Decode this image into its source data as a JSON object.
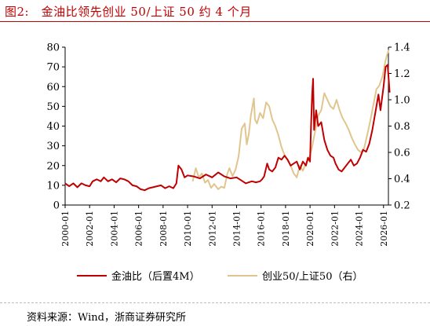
{
  "page": {
    "title": "图2:　金油比领先创业 50/上证 50 约 4 个月",
    "source": "资料来源：Wind，浙商证券研究所"
  },
  "chart_data": {
    "type": "line",
    "title": "图2:　金油比领先创业 50/上证 50 约 4 个月",
    "x_ticks": [
      "2000-01",
      "2002-01",
      "2004-01",
      "2006-01",
      "2008-01",
      "2010-01",
      "2012-01",
      "2014-01",
      "2016-01",
      "2018-01",
      "2020-01",
      "2022-01",
      "2024-01",
      "2026-01"
    ],
    "y_left": {
      "ticks": [
        0,
        10,
        20,
        30,
        40,
        50,
        60,
        70,
        80
      ],
      "ylim": [
        0,
        80
      ]
    },
    "y_right": {
      "ticks": [
        "0.2",
        "0.4",
        "0.6",
        "0.8",
        "1.0",
        "1.2",
        "1.4"
      ],
      "ylim": [
        0.2,
        1.4
      ]
    },
    "grid": false,
    "legend_position": "bottom",
    "series": [
      {
        "name": "金油比（后置4M）",
        "axis": "left",
        "color": "#c00000",
        "points": [
          [
            "2000-01",
            11
          ],
          [
            "2000-05",
            9.5
          ],
          [
            "2000-09",
            11
          ],
          [
            "2001-01",
            9
          ],
          [
            "2001-05",
            11
          ],
          [
            "2001-09",
            10
          ],
          [
            "2002-01",
            9.5
          ],
          [
            "2002-04",
            12
          ],
          [
            "2002-08",
            13
          ],
          [
            "2002-12",
            12
          ],
          [
            "2003-03",
            14
          ],
          [
            "2003-07",
            12
          ],
          [
            "2003-11",
            13
          ],
          [
            "2004-03",
            11.5
          ],
          [
            "2004-07",
            13.5
          ],
          [
            "2004-11",
            13
          ],
          [
            "2005-03",
            12
          ],
          [
            "2005-07",
            10
          ],
          [
            "2005-11",
            9.5
          ],
          [
            "2006-03",
            8
          ],
          [
            "2006-07",
            7.5
          ],
          [
            "2006-11",
            8.5
          ],
          [
            "2007-03",
            9
          ],
          [
            "2007-07",
            9.5
          ],
          [
            "2007-11",
            10
          ],
          [
            "2008-03",
            8.5
          ],
          [
            "2008-07",
            9.5
          ],
          [
            "2008-11",
            8.5
          ],
          [
            "2009-02",
            11
          ],
          [
            "2009-04",
            20
          ],
          [
            "2009-07",
            18
          ],
          [
            "2009-10",
            14
          ],
          [
            "2010-01",
            15
          ],
          [
            "2010-07",
            14.5
          ],
          [
            "2011-01",
            13.5
          ],
          [
            "2011-07",
            15.5
          ],
          [
            "2012-01",
            14
          ],
          [
            "2012-07",
            16.5
          ],
          [
            "2013-01",
            14.5
          ],
          [
            "2013-07",
            13.5
          ],
          [
            "2014-01",
            14
          ],
          [
            "2014-07",
            12
          ],
          [
            "2014-10",
            11
          ],
          [
            "2015-01",
            11.5
          ],
          [
            "2015-04",
            12
          ],
          [
            "2015-08",
            11.5
          ],
          [
            "2015-12",
            12
          ],
          [
            "2016-02",
            13
          ],
          [
            "2016-04",
            14.5
          ],
          [
            "2016-07",
            21
          ],
          [
            "2016-09",
            18
          ],
          [
            "2016-12",
            17
          ],
          [
            "2017-03",
            19
          ],
          [
            "2017-06",
            24
          ],
          [
            "2017-09",
            23
          ],
          [
            "2017-12",
            25
          ],
          [
            "2018-03",
            23
          ],
          [
            "2018-06",
            20
          ],
          [
            "2018-09",
            21
          ],
          [
            "2018-12",
            22
          ],
          [
            "2019-03",
            18
          ],
          [
            "2019-06",
            22
          ],
          [
            "2019-09",
            20
          ],
          [
            "2019-11",
            24
          ],
          [
            "2020-01",
            22
          ],
          [
            "2020-02",
            40
          ],
          [
            "2020-03",
            55
          ],
          [
            "2020-04",
            64
          ],
          [
            "2020-05",
            38
          ],
          [
            "2020-07",
            48
          ],
          [
            "2020-09",
            40
          ],
          [
            "2020-12",
            42
          ],
          [
            "2021-03",
            33
          ],
          [
            "2021-06",
            28
          ],
          [
            "2021-09",
            25
          ],
          [
            "2021-12",
            24
          ],
          [
            "2022-02",
            21
          ],
          [
            "2022-05",
            18
          ],
          [
            "2022-08",
            17
          ],
          [
            "2022-11",
            19
          ],
          [
            "2023-02",
            21
          ],
          [
            "2023-05",
            23
          ],
          [
            "2023-08",
            20
          ],
          [
            "2023-11",
            21
          ],
          [
            "2024-02",
            24
          ],
          [
            "2024-05",
            28
          ],
          [
            "2024-08",
            27
          ],
          [
            "2024-11",
            31
          ],
          [
            "2025-02",
            38
          ],
          [
            "2025-05",
            47
          ],
          [
            "2025-08",
            56
          ],
          [
            "2025-10",
            48
          ],
          [
            "2026-01",
            60
          ],
          [
            "2026-03",
            70
          ],
          [
            "2026-05",
            71
          ],
          [
            "2026-07",
            57
          ]
        ]
      },
      {
        "name": "创业50/上证50（右）",
        "axis": "right",
        "color": "#e0c68e",
        "points": [
          [
            "2010-06",
            0.38
          ],
          [
            "2010-09",
            0.48
          ],
          [
            "2010-12",
            0.41
          ],
          [
            "2011-03",
            0.44
          ],
          [
            "2011-06",
            0.37
          ],
          [
            "2011-09",
            0.39
          ],
          [
            "2011-12",
            0.33
          ],
          [
            "2012-03",
            0.36
          ],
          [
            "2012-07",
            0.32
          ],
          [
            "2012-10",
            0.34
          ],
          [
            "2013-01",
            0.33
          ],
          [
            "2013-04",
            0.44
          ],
          [
            "2013-06",
            0.48
          ],
          [
            "2013-09",
            0.42
          ],
          [
            "2013-12",
            0.47
          ],
          [
            "2014-03",
            0.57
          ],
          [
            "2014-06",
            0.78
          ],
          [
            "2014-09",
            0.82
          ],
          [
            "2014-11",
            0.66
          ],
          [
            "2015-01",
            0.74
          ],
          [
            "2015-03",
            0.88
          ],
          [
            "2015-06",
            1.01
          ],
          [
            "2015-07",
            0.85
          ],
          [
            "2015-09",
            0.82
          ],
          [
            "2015-12",
            0.9
          ],
          [
            "2016-03",
            0.86
          ],
          [
            "2016-06",
            0.98
          ],
          [
            "2016-09",
            0.95
          ],
          [
            "2016-12",
            0.85
          ],
          [
            "2017-03",
            0.8
          ],
          [
            "2017-06",
            0.73
          ],
          [
            "2017-09",
            0.64
          ],
          [
            "2017-12",
            0.58
          ],
          [
            "2018-03",
            0.54
          ],
          [
            "2018-06",
            0.5
          ],
          [
            "2018-09",
            0.44
          ],
          [
            "2018-12",
            0.41
          ],
          [
            "2019-03",
            0.5
          ],
          [
            "2019-06",
            0.46
          ],
          [
            "2019-09",
            0.52
          ],
          [
            "2019-12",
            0.55
          ],
          [
            "2020-03",
            0.64
          ],
          [
            "2020-06",
            0.76
          ],
          [
            "2020-09",
            0.88
          ],
          [
            "2020-12",
            0.92
          ],
          [
            "2021-03",
            1.05
          ],
          [
            "2021-06",
            1.0
          ],
          [
            "2021-09",
            0.95
          ],
          [
            "2021-12",
            0.93
          ],
          [
            "2022-03",
            1.0
          ],
          [
            "2022-06",
            0.92
          ],
          [
            "2022-09",
            0.86
          ],
          [
            "2022-12",
            0.82
          ],
          [
            "2023-03",
            0.77
          ],
          [
            "2023-06",
            0.71
          ],
          [
            "2023-09",
            0.66
          ],
          [
            "2023-12",
            0.62
          ],
          [
            "2024-03",
            0.6
          ],
          [
            "2024-06",
            0.63
          ],
          [
            "2024-09",
            0.73
          ],
          [
            "2024-12",
            0.84
          ],
          [
            "2025-03",
            0.96
          ],
          [
            "2025-06",
            1.08
          ],
          [
            "2025-09",
            1.11
          ],
          [
            "2025-12",
            1.18
          ],
          [
            "2026-03",
            1.3
          ],
          [
            "2026-06",
            1.38
          ]
        ]
      }
    ]
  }
}
